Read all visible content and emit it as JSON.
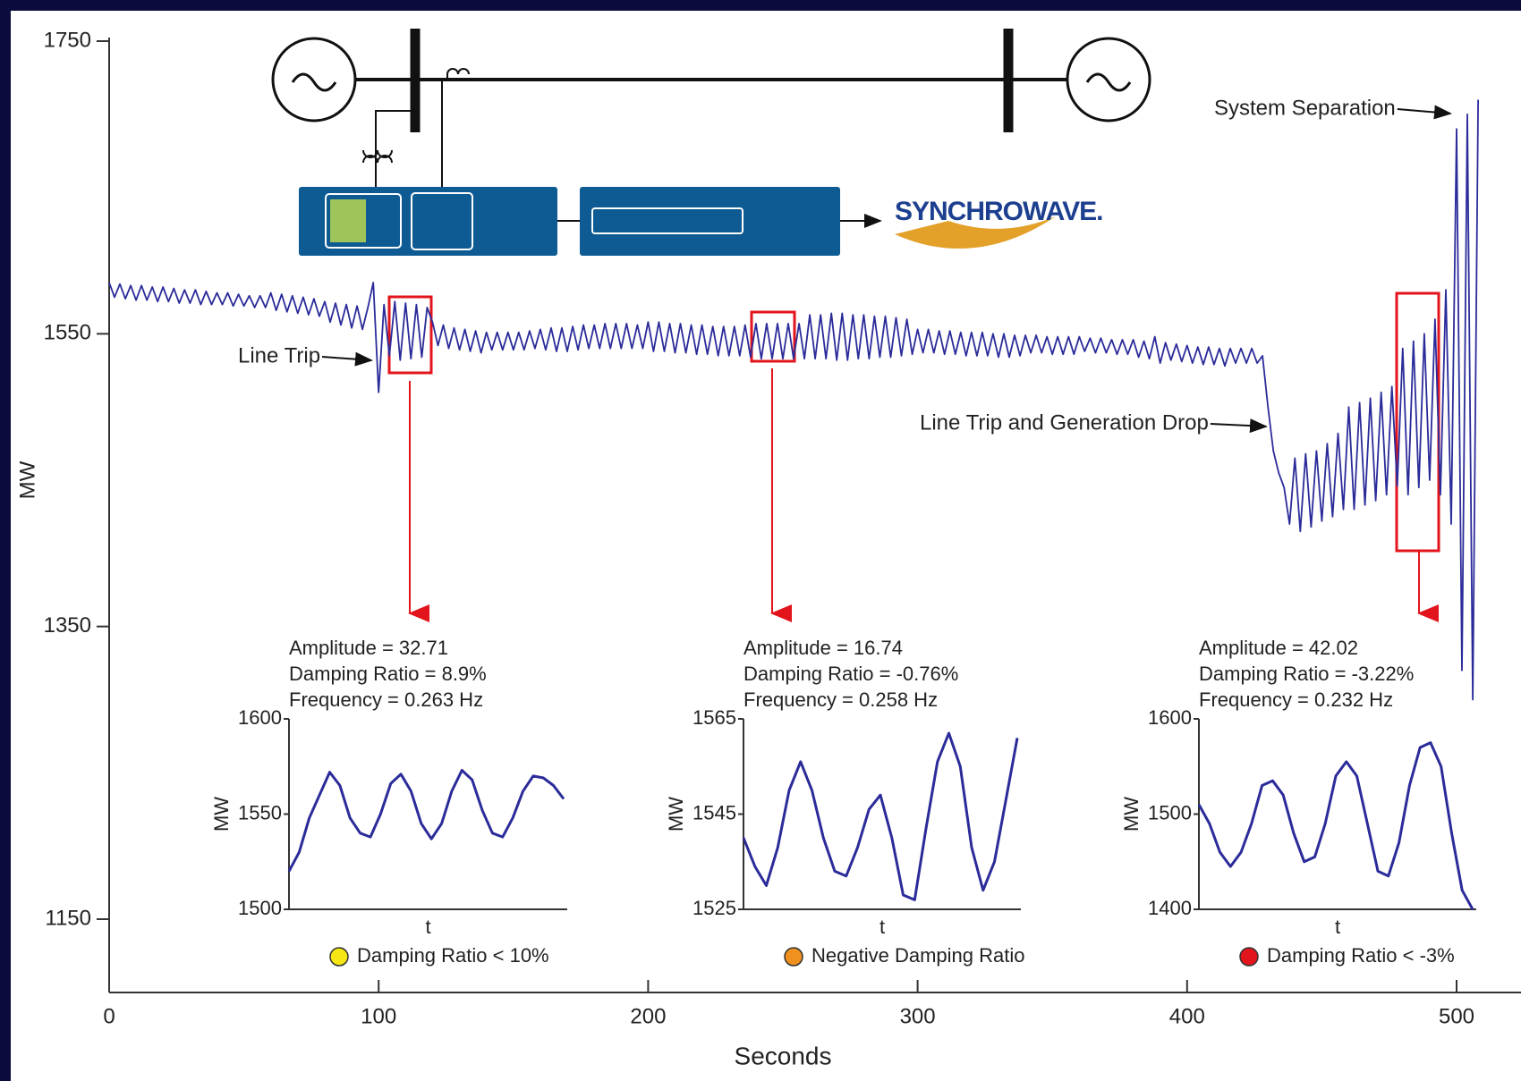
{
  "chart_data": [
    {
      "type": "line",
      "xlabel": "Seconds",
      "ylabel": "MW",
      "color": "#2b2b9a",
      "xlim": [
        0,
        500
      ],
      "xticks": [
        0,
        100,
        200,
        300,
        400,
        500
      ],
      "ylim": [
        1150,
        1750
      ],
      "yticks": [
        1150,
        1350,
        1550,
        1750
      ],
      "annotations": [
        "Line Trip",
        "Line Trip and Generation Drop",
        "System Separation"
      ],
      "logo": "SYNCHROWAVE.",
      "x": [
        0,
        2,
        4,
        6,
        8,
        10,
        12,
        14,
        16,
        18,
        20,
        22,
        24,
        26,
        28,
        30,
        32,
        34,
        36,
        38,
        40,
        42,
        44,
        46,
        48,
        50,
        52,
        54,
        56,
        58,
        60,
        62,
        64,
        66,
        68,
        70,
        72,
        74,
        76,
        78,
        80,
        82,
        84,
        86,
        88,
        90,
        92,
        94,
        96,
        98,
        100,
        102,
        104,
        106,
        108,
        110,
        112,
        114,
        116,
        118,
        120,
        122,
        124,
        126,
        128,
        130,
        132,
        134,
        136,
        138,
        140,
        142,
        144,
        146,
        148,
        150,
        152,
        154,
        156,
        158,
        160,
        162,
        164,
        166,
        168,
        170,
        172,
        174,
        176,
        178,
        180,
        182,
        184,
        186,
        188,
        190,
        192,
        194,
        196,
        198,
        200,
        202,
        204,
        206,
        208,
        210,
        212,
        214,
        216,
        218,
        220,
        222,
        224,
        226,
        228,
        230,
        232,
        234,
        236,
        238,
        240,
        242,
        244,
        246,
        248,
        250,
        252,
        254,
        256,
        258,
        260,
        262,
        264,
        266,
        268,
        270,
        272,
        274,
        276,
        278,
        280,
        282,
        284,
        286,
        288,
        290,
        292,
        294,
        296,
        298,
        300,
        302,
        304,
        306,
        308,
        310,
        312,
        314,
        316,
        318,
        320,
        322,
        324,
        326,
        328,
        330,
        332,
        334,
        336,
        338,
        340,
        342,
        344,
        346,
        348,
        350,
        352,
        354,
        356,
        358,
        360,
        362,
        364,
        366,
        368,
        370,
        372,
        374,
        376,
        378,
        380,
        382,
        384,
        386,
        388,
        390,
        392,
        394,
        396,
        398,
        400,
        402,
        404,
        406,
        408,
        410,
        412,
        414,
        416,
        418,
        420,
        422,
        424,
        426,
        428,
        430,
        432,
        434,
        436,
        438,
        440,
        442,
        444,
        446,
        448,
        450,
        452,
        454,
        456,
        458,
        460,
        462,
        464,
        466,
        468,
        470,
        472,
        474,
        476,
        478,
        480,
        482,
        484,
        486,
        488,
        490,
        492,
        494,
        496,
        498,
        500,
        502,
        504,
        506,
        508
      ],
      "values": [
        1585,
        1575,
        1584,
        1574,
        1583,
        1573,
        1583,
        1573,
        1582,
        1572,
        1582,
        1572,
        1581,
        1571,
        1580,
        1571,
        1580,
        1570,
        1579,
        1570,
        1578,
        1570,
        1578,
        1569,
        1577,
        1569,
        1576,
        1568,
        1576,
        1568,
        1578,
        1566,
        1577,
        1565,
        1576,
        1564,
        1575,
        1563,
        1574,
        1562,
        1572,
        1558,
        1571,
        1556,
        1570,
        1554,
        1569,
        1553,
        1568,
        1585,
        1510,
        1570,
        1535,
        1572,
        1532,
        1571,
        1533,
        1570,
        1534,
        1568,
        1558,
        1542,
        1556,
        1540,
        1554,
        1539,
        1553,
        1538,
        1552,
        1537,
        1551,
        1539,
        1551,
        1539,
        1551,
        1539,
        1551,
        1539,
        1552,
        1540,
        1553,
        1539,
        1554,
        1538,
        1554,
        1538,
        1555,
        1539,
        1556,
        1540,
        1556,
        1540,
        1557,
        1540,
        1557,
        1540,
        1557,
        1540,
        1556,
        1540,
        1558,
        1538,
        1558,
        1538,
        1557,
        1537,
        1557,
        1537,
        1556,
        1536,
        1556,
        1536,
        1555,
        1535,
        1555,
        1535,
        1555,
        1535,
        1556,
        1534,
        1557,
        1533,
        1557,
        1533,
        1557,
        1533,
        1557,
        1533,
        1557,
        1533,
        1563,
        1533,
        1563,
        1533,
        1564,
        1532,
        1564,
        1532,
        1563,
        1533,
        1563,
        1533,
        1562,
        1534,
        1562,
        1534,
        1561,
        1535,
        1560,
        1536,
        1553,
        1537,
        1553,
        1537,
        1552,
        1536,
        1552,
        1536,
        1551,
        1535,
        1551,
        1535,
        1551,
        1535,
        1550,
        1534,
        1550,
        1534,
        1549,
        1535,
        1549,
        1537,
        1549,
        1537,
        1548,
        1536,
        1548,
        1536,
        1548,
        1536,
        1548,
        1538,
        1547,
        1537,
        1547,
        1537,
        1546,
        1536,
        1546,
        1536,
        1546,
        1534,
        1545,
        1533,
        1548,
        1530,
        1544,
        1532,
        1543,
        1531,
        1542,
        1530,
        1541,
        1529,
        1541,
        1529,
        1540,
        1528,
        1540,
        1530,
        1540,
        1530,
        1540,
        1530,
        1535,
        1500,
        1470,
        1455,
        1445,
        1420,
        1465,
        1415,
        1468,
        1418,
        1470,
        1422,
        1475,
        1425,
        1482,
        1430,
        1500,
        1430,
        1503,
        1433,
        1506,
        1436,
        1510,
        1440,
        1514,
        1446,
        1540,
        1440,
        1545,
        1445,
        1550,
        1450,
        1560,
        1440,
        1580,
        1420,
        1690,
        1320,
        1700,
        1300,
        1710
      ]
    },
    {
      "type": "line",
      "xlabel": "t",
      "ylabel": "MW",
      "color": "#2b2b9a",
      "ylim": [
        1500,
        1600
      ],
      "yticks": [
        1500,
        1550,
        1600
      ],
      "annotations": [
        "Amplitude = 32.71",
        "Damping Ratio = 8.9%",
        "Frequency = 0.263 Hz"
      ],
      "legend": {
        "label": "Damping Ratio < 10%",
        "color": "#f5e614"
      },
      "values": [
        1520,
        1530,
        1548,
        1560,
        1572,
        1565,
        1548,
        1540,
        1538,
        1550,
        1566,
        1571,
        1562,
        1545,
        1537,
        1545,
        1562,
        1573,
        1568,
        1552,
        1540,
        1538,
        1548,
        1562,
        1570,
        1569,
        1565,
        1558
      ]
    },
    {
      "type": "line",
      "xlabel": "t",
      "ylabel": "MW",
      "color": "#2b2b9a",
      "ylim": [
        1525,
        1565
      ],
      "yticks": [
        1525,
        1545,
        1565
      ],
      "annotations": [
        "Amplitude = 16.74",
        "Damping Ratio = -0.76%",
        "Frequency = 0.258  Hz"
      ],
      "legend": {
        "label": "Negative Damping Ratio",
        "color": "#f0901e"
      },
      "values": [
        1540,
        1534,
        1530,
        1538,
        1550,
        1556,
        1550,
        1540,
        1533,
        1532,
        1538,
        1546,
        1549,
        1540,
        1528,
        1527,
        1542,
        1556,
        1562,
        1555,
        1538,
        1529,
        1535,
        1548,
        1561
      ]
    },
    {
      "type": "line",
      "xlabel": "t",
      "ylabel": "MW",
      "color": "#2b2b9a",
      "ylim": [
        1400,
        1600
      ],
      "yticks": [
        1400,
        1500,
        1600
      ],
      "annotations": [
        "Amplitude = 42.02",
        "Damping Ratio = -3.22%",
        "Frequency = 0.232 Hz"
      ],
      "legend": {
        "label": "Damping Ratio < -3%",
        "color": "#e3151c"
      },
      "values": [
        1510,
        1490,
        1460,
        1445,
        1460,
        1490,
        1530,
        1535,
        1520,
        1480,
        1450,
        1455,
        1490,
        1540,
        1555,
        1540,
        1490,
        1440,
        1435,
        1470,
        1530,
        1570,
        1575,
        1550,
        1480,
        1420,
        1400
      ]
    }
  ]
}
